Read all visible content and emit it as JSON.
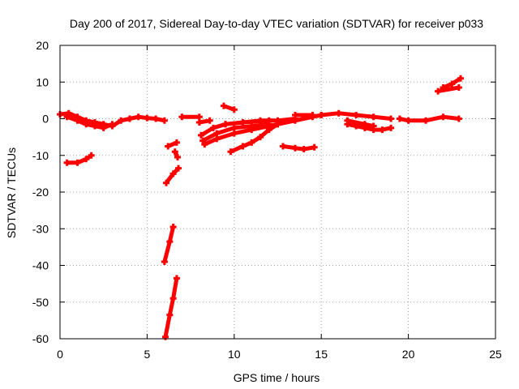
{
  "chart_data": {
    "type": "scatter",
    "title": "Day 200 of 2017, Sidereal Day-to-day VTEC variation (SDTVAR) for receiver p033",
    "xlabel": "GPS time / hours",
    "ylabel": "SDTVAR / TECUs",
    "xlim": [
      0,
      25
    ],
    "ylim": [
      -60,
      20
    ],
    "xticks": [
      0,
      5,
      10,
      15,
      20,
      25
    ],
    "yticks": [
      -60,
      -50,
      -40,
      -30,
      -20,
      -10,
      0,
      10,
      20
    ],
    "grid": true,
    "legend": "none",
    "marker_color": "#ff0000",
    "series": [
      {
        "segments": [
          [
            [
              0.0,
              1.2
            ],
            [
              0.5,
              1.5
            ],
            [
              1.0,
              0.5
            ],
            [
              1.5,
              -0.5
            ],
            [
              2.0,
              -1.0
            ],
            [
              2.5,
              -1.5
            ],
            [
              3.0,
              -2.0
            ],
            [
              3.5,
              -0.5
            ],
            [
              4.0,
              0.0
            ],
            [
              4.5,
              0.5
            ],
            [
              5.0,
              0.2
            ],
            [
              5.5,
              0.0
            ],
            [
              6.0,
              -0.5
            ]
          ],
          [
            [
              0.4,
              0.5
            ],
            [
              1.0,
              -0.5
            ],
            [
              1.5,
              -1.5
            ],
            [
              2.0,
              -2.0
            ],
            [
              2.5,
              -2.5
            ],
            [
              3.0,
              -1.5
            ]
          ],
          [
            [
              0.4,
              -12.0
            ],
            [
              1.0,
              -12.0
            ],
            [
              1.5,
              -11.0
            ],
            [
              1.8,
              -10.0
            ]
          ],
          [
            [
              6.1,
              -17.5
            ],
            [
              6.5,
              -15.0
            ],
            [
              6.8,
              -13.5
            ]
          ],
          [
            [
              6.0,
              -39.0
            ],
            [
              6.3,
              -33.5
            ],
            [
              6.5,
              -29.5
            ]
          ],
          [
            [
              6.05,
              -59.5
            ],
            [
              6.3,
              -53.5
            ],
            [
              6.5,
              -49.0
            ],
            [
              6.7,
              -43.5
            ]
          ],
          [
            [
              6.2,
              -7.5
            ],
            [
              6.7,
              -6.5
            ]
          ],
          [
            [
              6.6,
              -9.0
            ],
            [
              6.75,
              -10.5
            ]
          ],
          [
            [
              7.0,
              0.5
            ],
            [
              8.0,
              0.5
            ]
          ],
          [
            [
              8.0,
              -1.0
            ],
            [
              8.6,
              -0.5
            ]
          ],
          [
            [
              8.1,
              -4.5
            ],
            [
              8.8,
              -2.5
            ],
            [
              9.5,
              -1.5
            ],
            [
              10.5,
              -1.0
            ],
            [
              12.0,
              -0.5
            ]
          ],
          [
            [
              8.2,
              -6.0
            ],
            [
              9.0,
              -4.0
            ],
            [
              10.0,
              -2.5
            ],
            [
              11.0,
              -2.0
            ],
            [
              12.0,
              -1.5
            ]
          ],
          [
            [
              8.3,
              -7.0
            ],
            [
              9.0,
              -5.5
            ],
            [
              10.0,
              -4.0
            ],
            [
              11.0,
              -3.0
            ],
            [
              12.5,
              -1.5
            ],
            [
              13.5,
              -0.5
            ],
            [
              14.5,
              0.5
            ],
            [
              15.0,
              1.0
            ]
          ],
          [
            [
              9.8,
              -9.0
            ],
            [
              10.5,
              -7.5
            ],
            [
              11.0,
              -6.5
            ],
            [
              11.5,
              -5.0
            ],
            [
              12.0,
              -3.0
            ],
            [
              12.5,
              -1.5
            ]
          ],
          [
            [
              9.4,
              3.5
            ],
            [
              10.0,
              2.5
            ]
          ],
          [
            [
              9.5,
              -1.5
            ],
            [
              10.5,
              -1.0
            ],
            [
              11.5,
              -0.5
            ],
            [
              12.5,
              -0.5
            ],
            [
              13.5,
              0.0
            ]
          ],
          [
            [
              12.8,
              -7.5
            ],
            [
              13.5,
              -8.0
            ],
            [
              14.0,
              -8.3
            ],
            [
              14.6,
              -7.8
            ]
          ],
          [
            [
              13.5,
              1.0
            ],
            [
              14.5,
              1.0
            ]
          ],
          [
            [
              15.0,
              1.0
            ],
            [
              16.0,
              1.5
            ],
            [
              17.0,
              1.0
            ],
            [
              18.0,
              0.5
            ],
            [
              19.0,
              0.0
            ]
          ],
          [
            [
              16.5,
              -1.5
            ],
            [
              17.0,
              -2.0
            ],
            [
              17.5,
              -2.5
            ],
            [
              18.0,
              -3.0
            ],
            [
              18.5,
              -3.0
            ],
            [
              19.0,
              -2.5
            ]
          ],
          [
            [
              16.5,
              -0.5
            ],
            [
              17.5,
              -1.5
            ],
            [
              18.0,
              -2.0
            ]
          ],
          [
            [
              19.5,
              0.0
            ],
            [
              20.0,
              -0.5
            ],
            [
              21.0,
              -0.5
            ],
            [
              22.0,
              0.5
            ],
            [
              22.9,
              0.0
            ]
          ],
          [
            [
              21.7,
              7.5
            ],
            [
              22.9,
              8.5
            ]
          ],
          [
            [
              22.0,
              8.5
            ],
            [
              22.5,
              9.5
            ],
            [
              23.0,
              11.0
            ]
          ]
        ]
      }
    ]
  }
}
